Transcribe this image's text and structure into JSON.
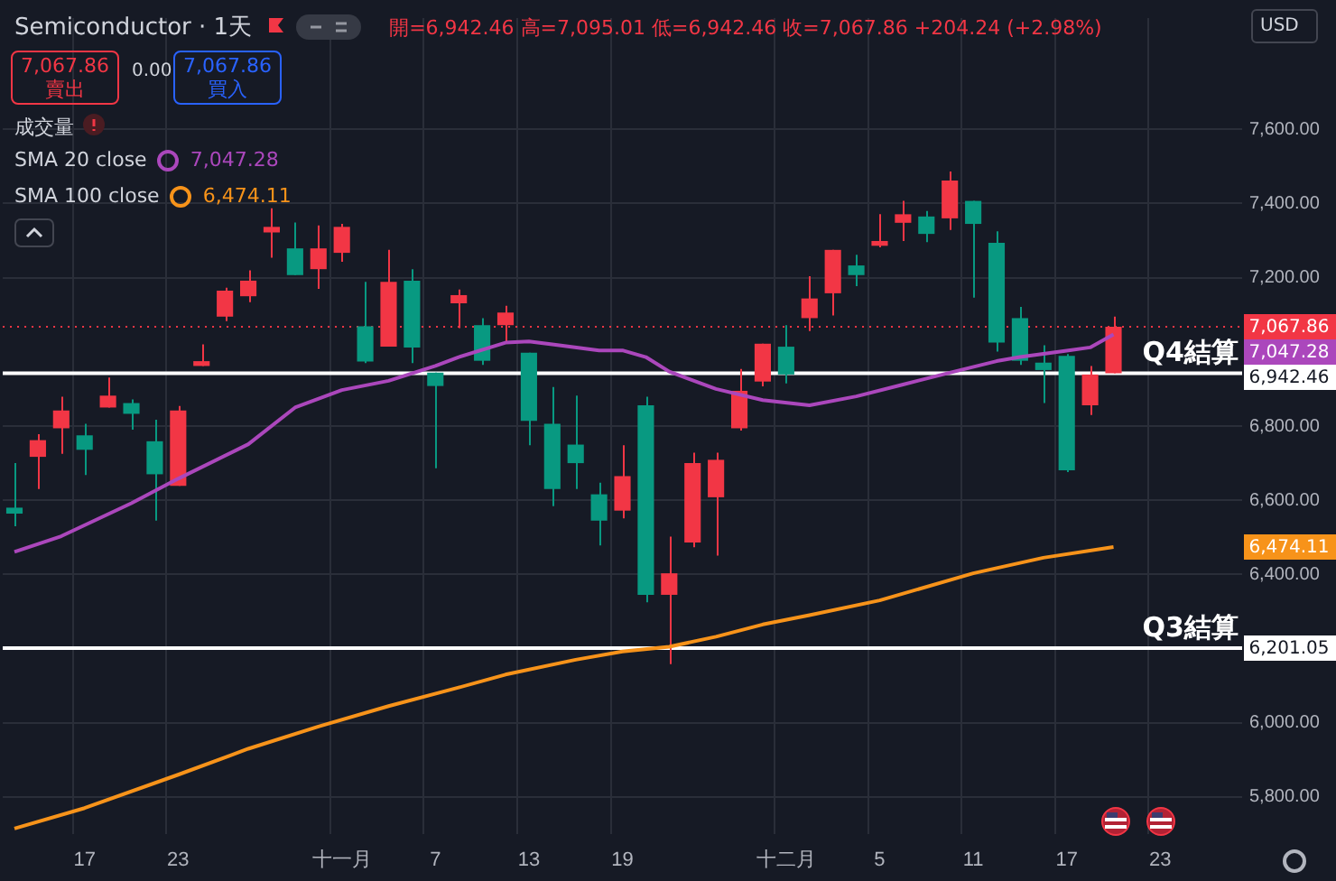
{
  "chart_data": {
    "type": "candlestick",
    "title": "Semiconductor · 1天",
    "subtitle": "開=6,942.46 高=7,095.01 低=6,942.46 收=7,067.86 +204.24 (+2.98%)",
    "categories": [
      null,
      null,
      null,
      "17",
      null,
      null,
      null,
      "23",
      null,
      null,
      null,
      null,
      null,
      null,
      "十一月",
      null,
      null,
      null,
      "7",
      null,
      null,
      null,
      "13",
      null,
      null,
      null,
      "19",
      null,
      null,
      null,
      null,
      null,
      null,
      "十二月",
      null,
      null,
      null,
      "5",
      null,
      null,
      null,
      "11",
      null,
      null,
      null,
      "17",
      null,
      null,
      null,
      "23",
      null,
      null,
      null
    ],
    "ohlc": [
      [
        6580,
        6700,
        6530,
        6564
      ],
      [
        6717,
        6778,
        6630,
        6762
      ],
      [
        6794,
        6879,
        6725,
        6842
      ],
      [
        6775,
        6806,
        6668,
        6736
      ],
      [
        6850,
        6931,
        6850,
        6882
      ],
      [
        6862,
        6872,
        6790,
        6833
      ],
      [
        6759,
        6817,
        6545,
        6670
      ],
      [
        6639,
        6854,
        6639,
        6842
      ],
      [
        6962,
        7020,
        6962,
        6975
      ],
      [
        7095,
        7173,
        7083,
        7165
      ],
      [
        7150,
        7220,
        7134,
        7192
      ],
      [
        7322,
        7387,
        7254,
        7337
      ],
      [
        7279,
        7349,
        7207,
        7207
      ],
      [
        7223,
        7341,
        7170,
        7279
      ],
      [
        7267,
        7345,
        7243,
        7337
      ],
      [
        7069,
        7189,
        6970,
        6974
      ],
      [
        7014,
        7275,
        7014,
        7189
      ],
      [
        7192,
        7223,
        6970,
        7012
      ],
      [
        6944,
        6944,
        6686,
        6908
      ],
      [
        7131,
        7168,
        7064,
        7153
      ],
      [
        7072,
        7091,
        6965,
        6976
      ],
      [
        7072,
        7124,
        7027,
        7106
      ],
      [
        6998,
        6998,
        6748,
        6814
      ],
      [
        6806,
        6905,
        6584,
        6630
      ],
      [
        6750,
        6882,
        6630,
        6700
      ],
      [
        6616,
        6647,
        6478,
        6545
      ],
      [
        6572,
        6748,
        6551,
        6665
      ],
      [
        6856,
        6879,
        6325,
        6345
      ],
      [
        6345,
        6502,
        6158,
        6403
      ],
      [
        6486,
        6728,
        6473,
        6700
      ],
      [
        6608,
        6728,
        6451,
        6709
      ],
      [
        6794,
        6954,
        6788,
        6895
      ],
      [
        6920,
        7022,
        6907,
        7022
      ],
      [
        7014,
        7072,
        6915,
        6939
      ],
      [
        7091,
        7204,
        7056,
        7144
      ],
      [
        7158,
        7275,
        7098,
        7275
      ],
      [
        7233,
        7262,
        7177,
        7207
      ],
      [
        7286,
        7371,
        7282,
        7299
      ],
      [
        7348,
        7407,
        7299,
        7371
      ],
      [
        7365,
        7380,
        7296,
        7318
      ],
      [
        7360,
        7486,
        7329,
        7462
      ],
      [
        7407,
        7407,
        7146,
        7345
      ],
      [
        7294,
        7325,
        7001,
        7025
      ],
      [
        7091,
        7121,
        6965,
        6976
      ],
      [
        6971,
        7018,
        6862,
        6951
      ],
      [
        6989,
        6994,
        6676,
        6681
      ],
      [
        6856,
        6962,
        6830,
        6939
      ],
      [
        6942.46,
        7095.01,
        6942.46,
        7067.86
      ],
      null,
      null,
      null,
      null,
      null
    ],
    "series": [
      {
        "name": "SMA 20 close",
        "type": "line",
        "color": "#ab47bc",
        "values": [
          6461,
          null,
          6503,
          null,
          null,
          6592,
          null,
          6658,
          null,
          null,
          6751,
          null,
          6850,
          null,
          6897,
          null,
          6922,
          null,
          6962,
          6986,
          null,
          7025,
          7028,
          7020,
          null,
          7004,
          7004,
          6986,
          6947,
          null,
          6900,
          null,
          6870,
          null,
          6856,
          null,
          6880,
          null,
          6912,
          null,
          6944,
          null,
          6975,
          6986,
          null,
          7003,
          7012,
          7047,
          null,
          null,
          null,
          null,
          null
        ]
      },
      {
        "name": "SMA 100 close",
        "type": "line",
        "color": "#f7931a",
        "values": [
          5715,
          null,
          null,
          5770,
          null,
          null,
          null,
          5860,
          null,
          null,
          5930,
          null,
          null,
          5990,
          null,
          null,
          6045,
          null,
          null,
          6095,
          null,
          6130,
          null,
          null,
          6170,
          null,
          6192,
          null,
          6205,
          null,
          6232,
          null,
          6265,
          null,
          6290,
          null,
          null,
          6330,
          null,
          null,
          null,
          6403,
          null,
          null,
          6445,
          null,
          null,
          6474,
          null,
          null,
          null,
          null,
          null
        ]
      }
    ],
    "ylim": [
      5700,
      7900
    ],
    "yticks": [
      {
        "value": 5800,
        "label": "5,800.00"
      },
      {
        "value": 6000,
        "label": "6,000.00"
      },
      {
        "value": 6400,
        "label": "6,400.00"
      },
      {
        "value": 6600,
        "label": "6,600.00"
      },
      {
        "value": 6800,
        "label": "6,800.00"
      },
      {
        "value": 7200,
        "label": "7,200.00"
      },
      {
        "value": 7400,
        "label": "7,400.00"
      },
      {
        "value": 7600,
        "label": "7,600.00"
      }
    ],
    "ref_lines": [
      {
        "axis": "y",
        "value": 7067.86,
        "label": "7,067.86",
        "color": "#f23645",
        "line_style": "dotted"
      },
      {
        "axis": "y",
        "value": 6942.46,
        "label": "Q4結算",
        "color": "#ffffff",
        "line_style": "solid"
      },
      {
        "axis": "y",
        "value": 6201.05,
        "label": "Q3結算",
        "color": "#ffffff",
        "line_style": "solid"
      }
    ],
    "annotations": [
      "7,067.86",
      "賣出",
      "0.00",
      "7,067.86",
      "買入",
      "成交量",
      "7,047.28",
      "6,474.11",
      "USD",
      "7,047.28",
      "6,474.11",
      "6,942.46",
      "6,201.05"
    ],
    "grid": true,
    "legend": "top left"
  }
}
